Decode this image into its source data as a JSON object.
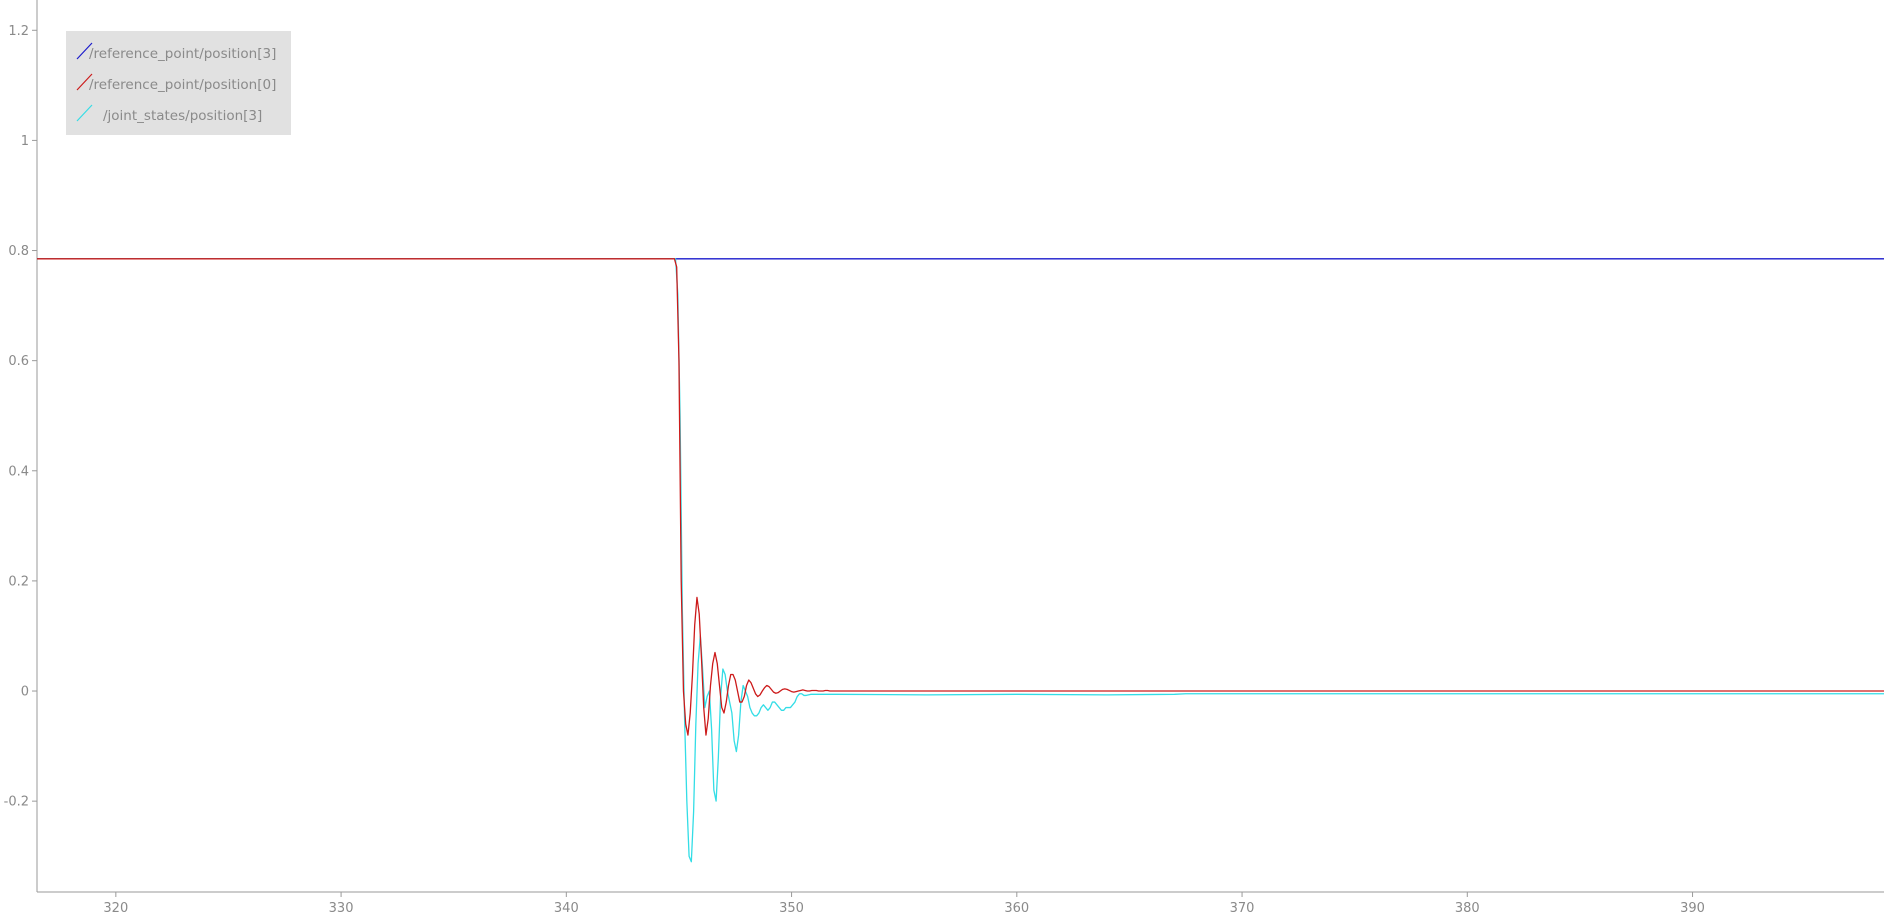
{
  "chart_data": {
    "type": "line",
    "title": "",
    "xlabel": "",
    "ylabel": "",
    "xlim": [
      316.5,
      398.5
    ],
    "ylim": [
      -0.365,
      1.255
    ],
    "x_ticks": [
      320,
      330,
      340,
      350,
      360,
      370,
      380,
      390
    ],
    "x_tick_labels": [
      "320",
      "330",
      "340",
      "350",
      "360",
      "370",
      "380",
      "390"
    ],
    "y_ticks": [
      -0.2,
      0,
      0.2,
      0.4,
      0.6,
      0.8,
      1,
      1.2
    ],
    "y_tick_labels": [
      "-0.2",
      "0",
      "0.2",
      "0.4",
      "0.6",
      "0.8",
      "1",
      "1.2"
    ],
    "grid": false,
    "legend_position": "top-left",
    "series": [
      {
        "name": "/reference_point/position[3]",
        "color": "#1a1acc",
        "x": [
          316.5,
          398.5
        ],
        "y": [
          0.785,
          0.785
        ]
      },
      {
        "name": "/reference_point/position[0]",
        "color": "#cc1a1a",
        "x": [
          316.5,
          344.8,
          344.9,
          345.0,
          345.1,
          345.2,
          345.3,
          345.4,
          345.5,
          345.6,
          345.7,
          345.8,
          345.9,
          346.0,
          346.1,
          346.2,
          346.3,
          346.4,
          346.5,
          346.6,
          346.7,
          346.8,
          346.9,
          347.0,
          347.1,
          347.2,
          347.3,
          347.4,
          347.5,
          347.6,
          347.7,
          347.8,
          347.9,
          348.0,
          348.1,
          348.2,
          348.3,
          348.4,
          348.5,
          348.6,
          348.7,
          348.8,
          348.9,
          349.0,
          349.1,
          349.2,
          349.3,
          349.4,
          349.5,
          349.6,
          349.7,
          349.8,
          349.9,
          350.0,
          350.1,
          350.2,
          350.3,
          350.4,
          350.5,
          350.6,
          350.7,
          350.8,
          350.9,
          351.0,
          351.1,
          351.2,
          351.3,
          351.4,
          351.5,
          351.6,
          351.7,
          351.8,
          351.9,
          352.0,
          398.5
        ],
        "y": [
          0.785,
          0.785,
          0.77,
          0.6,
          0.2,
          0.0,
          -0.06,
          -0.08,
          -0.04,
          0.03,
          0.12,
          0.17,
          0.14,
          0.06,
          -0.03,
          -0.08,
          -0.05,
          0.01,
          0.05,
          0.07,
          0.05,
          0.01,
          -0.03,
          -0.04,
          -0.02,
          0.01,
          0.03,
          0.03,
          0.02,
          0.0,
          -0.02,
          -0.02,
          -0.01,
          0.01,
          0.02,
          0.015,
          0.005,
          -0.005,
          -0.01,
          -0.007,
          0.0,
          0.006,
          0.01,
          0.008,
          0.003,
          -0.002,
          -0.004,
          -0.003,
          0.0,
          0.003,
          0.004,
          0.003,
          0.001,
          -0.001,
          -0.002,
          -0.001,
          0.0,
          0.001,
          0.002,
          0.001,
          0.0,
          0.0,
          0.001,
          0.001,
          0.001,
          0.0,
          0.0,
          0.0,
          0.001,
          0.001,
          0.0,
          0.0,
          0.0,
          0.0,
          0.0
        ]
      },
      {
        "name": "/joint_states/position[3]",
        "color": "#33dde6",
        "x": [
          316.5,
          344.85,
          344.95,
          345.05,
          345.15,
          345.25,
          345.35,
          345.45,
          345.55,
          345.65,
          345.75,
          345.85,
          345.95,
          346.05,
          346.15,
          346.25,
          346.35,
          346.45,
          346.55,
          346.65,
          346.75,
          346.85,
          346.95,
          347.05,
          347.15,
          347.25,
          347.35,
          347.45,
          347.55,
          347.65,
          347.75,
          347.85,
          347.95,
          348.05,
          348.15,
          348.25,
          348.35,
          348.45,
          348.55,
          348.65,
          348.75,
          348.85,
          348.95,
          349.05,
          349.15,
          349.25,
          349.35,
          349.45,
          349.55,
          349.65,
          349.75,
          349.85,
          349.95,
          350.05,
          350.15,
          350.25,
          350.35,
          350.45,
          350.55,
          350.65,
          350.75,
          350.85,
          350.95,
          351.05,
          351.15,
          352.0,
          356.0,
          360.0,
          364.0,
          367.0,
          367.5,
          370.0,
          380.0,
          390.0,
          398.5
        ],
        "y": [
          0.785,
          0.785,
          0.72,
          0.5,
          0.15,
          -0.05,
          -0.2,
          -0.3,
          -0.31,
          -0.22,
          -0.06,
          0.05,
          0.1,
          0.04,
          -0.03,
          -0.01,
          0.0,
          -0.07,
          -0.18,
          -0.2,
          -0.12,
          -0.01,
          0.04,
          0.03,
          0.0,
          -0.02,
          -0.04,
          -0.09,
          -0.11,
          -0.08,
          -0.02,
          0.01,
          0.0,
          -0.01,
          -0.03,
          -0.04,
          -0.045,
          -0.045,
          -0.04,
          -0.03,
          -0.025,
          -0.03,
          -0.035,
          -0.03,
          -0.02,
          -0.02,
          -0.025,
          -0.03,
          -0.035,
          -0.035,
          -0.03,
          -0.03,
          -0.03,
          -0.025,
          -0.02,
          -0.01,
          -0.005,
          -0.005,
          -0.008,
          -0.008,
          -0.007,
          -0.006,
          -0.006,
          -0.006,
          -0.006,
          -0.006,
          -0.007,
          -0.006,
          -0.007,
          -0.006,
          -0.005,
          -0.005,
          -0.005,
          -0.005,
          -0.005
        ]
      }
    ]
  }
}
